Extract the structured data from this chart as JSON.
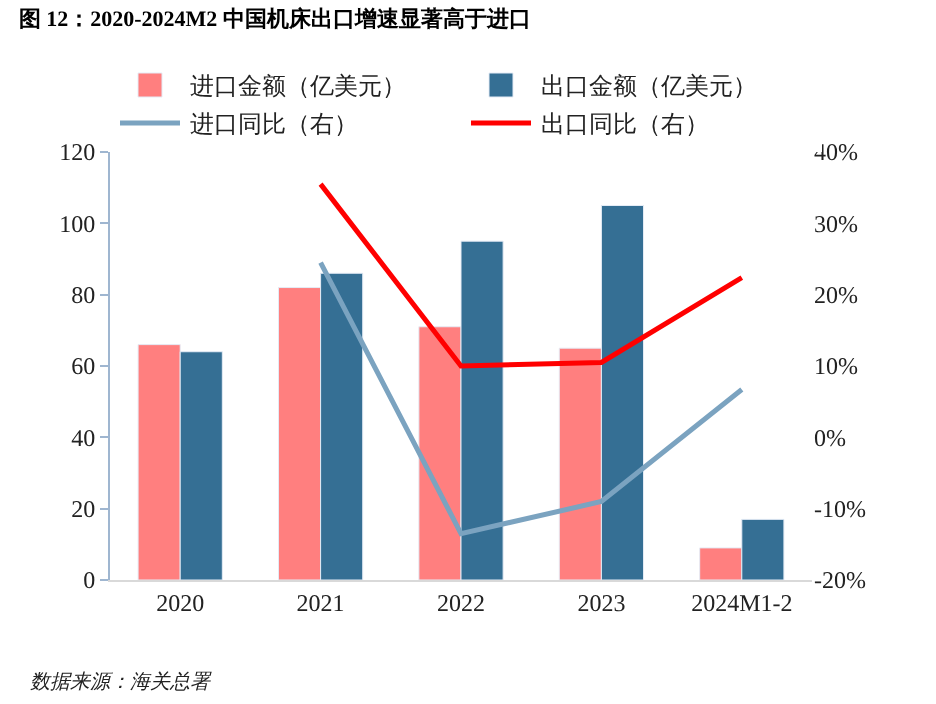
{
  "chart_data": {
    "type": "bar",
    "title": "图 12：2020-2024M2 中国机床出口增速显著高于进口",
    "categories": [
      "2020",
      "2021",
      "2022",
      "2023",
      "2024M1-2"
    ],
    "series": [
      {
        "name": "进口金额（亿美元）",
        "color": "#ff7f7f",
        "values": [
          66,
          82,
          71,
          65,
          9
        ]
      },
      {
        "name": "出口金额（亿美元）",
        "color": "#356f94",
        "values": [
          64,
          86,
          95,
          105,
          17
        ]
      },
      {
        "name": "进口同比（右）",
        "type": "line",
        "axis": "y2",
        "color": "#7ba3c0",
        "values": [
          null,
          24.5,
          -13.5,
          -9,
          6.7
        ]
      },
      {
        "name": "出口同比（右）",
        "type": "line",
        "axis": "y2",
        "color": "#ff0000",
        "values": [
          null,
          35.5,
          10,
          10.5,
          22.4
        ]
      }
    ],
    "ylim": [
      0,
      120
    ],
    "yticks": [
      0,
      20,
      40,
      60,
      80,
      100,
      120
    ],
    "y2lim": [
      -20,
      40
    ],
    "y2ticks": [
      {
        "value": -20,
        "label": "-20%"
      },
      {
        "value": -10,
        "label": "-10%"
      },
      {
        "value": 0,
        "label": "0%"
      },
      {
        "value": 10,
        "label": "10%"
      },
      {
        "value": 20,
        "label": "20%"
      },
      {
        "value": 30,
        "label": "30%"
      },
      {
        "value": 40,
        "label": "40%"
      }
    ],
    "legend": "top",
    "marker": "none",
    "annotations": [
      "数据来源：海关总署"
    ]
  }
}
